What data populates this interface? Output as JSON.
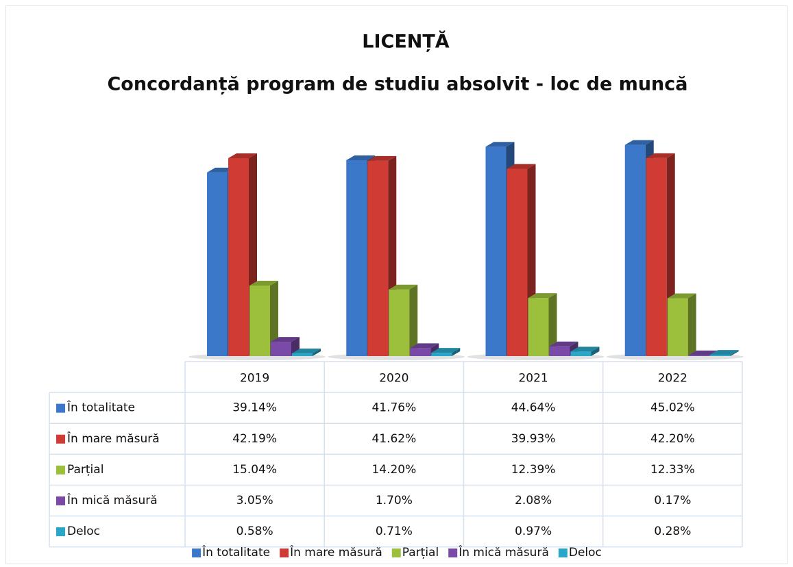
{
  "chart_data": {
    "type": "bar3d",
    "title": "LICENȚĂ",
    "subtitle": "Concordanță program de studiu absolvit - loc de muncă",
    "categories": [
      "2019",
      "2020",
      "2021",
      "2022"
    ],
    "series": [
      {
        "name": "În totalitate",
        "color": "#3b78c9",
        "values": [
          39.14,
          41.76,
          44.64,
          45.02
        ],
        "value_labels": [
          "39.14%",
          "41.76%",
          "44.64%",
          "45.02%"
        ]
      },
      {
        "name": "În mare măsură",
        "color": "#d03b33",
        "values": [
          42.19,
          41.62,
          39.93,
          42.2
        ],
        "value_labels": [
          "42.19%",
          "41.62%",
          "39.93%",
          "42.20%"
        ]
      },
      {
        "name": "Parțial",
        "color": "#9cc03c",
        "values": [
          15.04,
          14.2,
          12.39,
          12.33
        ],
        "value_labels": [
          "15.04%",
          "14.20%",
          "12.39%",
          "12.33%"
        ]
      },
      {
        "name": "În mică măsură",
        "color": "#7b4aa9",
        "values": [
          3.05,
          1.7,
          2.08,
          0.17
        ],
        "value_labels": [
          "3.05%",
          "1.70%",
          "2.08%",
          "0.17%"
        ]
      },
      {
        "name": "Deloc",
        "color": "#2aa6c8",
        "values": [
          0.58,
          0.71,
          0.97,
          0.28
        ],
        "value_labels": [
          "0.58%",
          "0.71%",
          "0.97%",
          "0.28%"
        ]
      }
    ],
    "data_table": true,
    "legend": "bottom"
  }
}
